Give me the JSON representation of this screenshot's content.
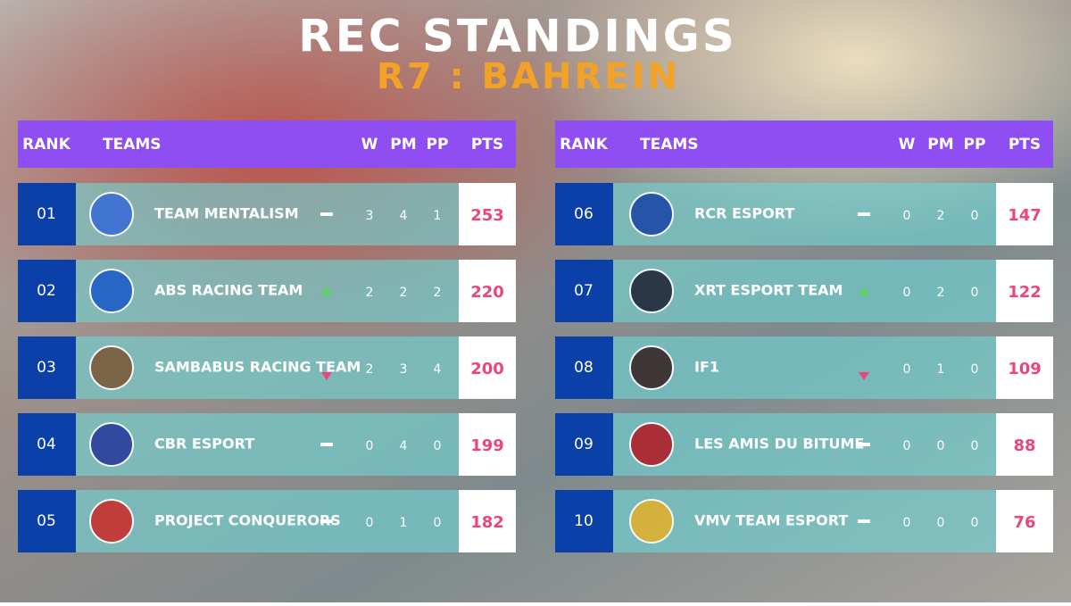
{
  "header": {
    "title": "REC STANDINGS",
    "subtitle": "R7 : BAHREIN"
  },
  "tables": [
    {
      "columns": [
        "RANK",
        "TEAMS",
        "W",
        "PM",
        "PP",
        "PTS"
      ],
      "rows": [
        [
          "01",
          "TEAM MENTALISM",
          3,
          4,
          1,
          253
        ],
        [
          "02",
          "ABS RACING TEAM",
          2,
          2,
          2,
          220
        ],
        [
          "03",
          "SAMBABUS RACING TEAM",
          2,
          3,
          4,
          200
        ],
        [
          "04",
          "CBR ESPORT",
          0,
          4,
          0,
          199
        ],
        [
          "05",
          "PROJECT CONQUERORS",
          0,
          1,
          0,
          182
        ]
      ]
    },
    {
      "columns": [
        "RANK",
        "TEAMS",
        "W",
        "PM",
        "PP",
        "PTS"
      ],
      "rows": [
        [
          "06",
          "RCR ESPORT",
          0,
          2,
          0,
          147
        ],
        [
          "07",
          "XRT ESPORT TEAM",
          0,
          2,
          0,
          122
        ],
        [
          "08",
          "IF1",
          0,
          1,
          0,
          109
        ],
        [
          "09",
          "LES AMIS DU BITUME",
          0,
          0,
          0,
          88
        ],
        [
          "10",
          "VMV TEAM ESPORT",
          0,
          0,
          0,
          76
        ]
      ]
    }
  ]
}
